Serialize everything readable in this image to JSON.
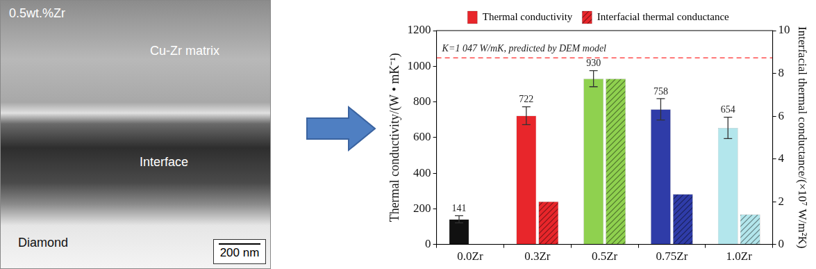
{
  "micrograph": {
    "sample_label": "0.5wt.%Zr",
    "regions": [
      "Cu-Zr matrix",
      "Interface",
      "Diamond"
    ],
    "scale_bar": "200 nm"
  },
  "chart_data": {
    "type": "bar",
    "categories": [
      "0.0Zr",
      "0.3Zr",
      "0.5Zr",
      "0.75Zr",
      "1.0Zr"
    ],
    "series": [
      {
        "name": "Thermal conductivity",
        "color": "#e8262b",
        "marker": "solid",
        "data_labels": true,
        "colors": [
          "#111111",
          "#e8262b",
          "#8fd14f",
          "#2f3ca8",
          "#b3e6ec"
        ],
        "values": [
          141,
          722,
          930,
          758,
          654
        ],
        "errors": [
          20,
          50,
          45,
          60,
          60
        ]
      },
      {
        "name": "Interfacial thermal conductance",
        "color": "#e8262b",
        "marker": "hatched",
        "axis": "y2",
        "colors": [
          "#111111",
          "#e8262b",
          "#8fd14f",
          "#2f3ca8",
          "#b3e6ec"
        ],
        "values": [
          null,
          2.0,
          7.75,
          2.35,
          1.4
        ]
      }
    ],
    "y_label": "Thermal conductivity/(W • mK⁻¹)",
    "y2_label": "Interfacial thermal conductance/(×10⁷ W/m²K)",
    "ylim": [
      0,
      1200
    ],
    "yticks": [
      0,
      200,
      400,
      600,
      800,
      1000,
      1200
    ],
    "y2lim": [
      0,
      10
    ],
    "y2ticks": [
      0,
      2,
      4,
      6,
      8,
      10
    ],
    "reference_line": {
      "value": 1047,
      "label": "K=1 047 W/mK, predicted by DEM model",
      "color": "#ff4d4d",
      "line_style": "dashed"
    },
    "legend": "top",
    "grid": false
  }
}
